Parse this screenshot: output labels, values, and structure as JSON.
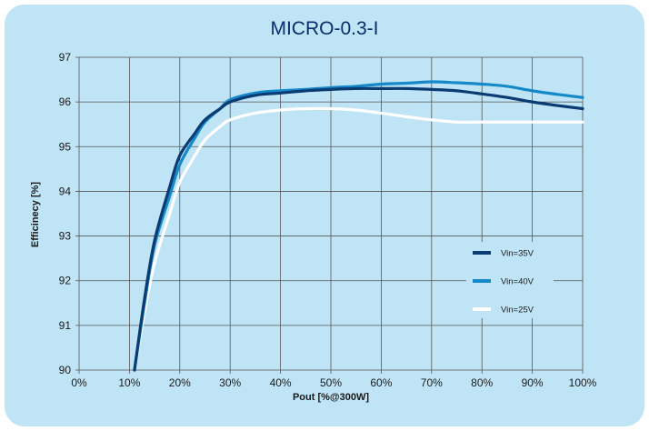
{
  "chart_data": {
    "type": "line",
    "title": "MICRO-0.3-I",
    "xlabel": "Pout [%@300W]",
    "ylabel": "Efficinecy [%]",
    "xlim": [
      0,
      100
    ],
    "ylim": [
      90,
      97
    ],
    "x_ticks": [
      "0%",
      "10%",
      "20%",
      "30%",
      "40%",
      "50%",
      "60%",
      "70%",
      "80%",
      "90%",
      "100%"
    ],
    "y_ticks": [
      "90",
      "91",
      "92",
      "93",
      "94",
      "95",
      "96",
      "97"
    ],
    "grid": true,
    "legend_position": "right",
    "series": [
      {
        "name": "Vin=35V",
        "color": "#0b3b73",
        "points": [
          [
            11,
            90
          ],
          [
            13,
            91.6
          ],
          [
            15,
            92.9
          ],
          [
            18,
            94.1
          ],
          [
            20,
            94.8
          ],
          [
            23,
            95.3
          ],
          [
            25,
            95.6
          ],
          [
            28,
            95.85
          ],
          [
            30,
            96.0
          ],
          [
            35,
            96.15
          ],
          [
            40,
            96.2
          ],
          [
            45,
            96.25
          ],
          [
            50,
            96.28
          ],
          [
            55,
            96.3
          ],
          [
            60,
            96.3
          ],
          [
            65,
            96.3
          ],
          [
            70,
            96.28
          ],
          [
            75,
            96.25
          ],
          [
            80,
            96.18
          ],
          [
            85,
            96.1
          ],
          [
            90,
            96.0
          ],
          [
            95,
            95.92
          ],
          [
            100,
            95.85
          ]
        ]
      },
      {
        "name": "Vin=40V",
        "color": "#1589c9",
        "points": [
          [
            11,
            90
          ],
          [
            13,
            91.5
          ],
          [
            15,
            92.8
          ],
          [
            18,
            93.9
          ],
          [
            20,
            94.6
          ],
          [
            23,
            95.2
          ],
          [
            25,
            95.55
          ],
          [
            28,
            95.85
          ],
          [
            30,
            96.05
          ],
          [
            35,
            96.2
          ],
          [
            40,
            96.25
          ],
          [
            45,
            96.28
          ],
          [
            50,
            96.32
          ],
          [
            55,
            96.35
          ],
          [
            60,
            96.4
          ],
          [
            65,
            96.42
          ],
          [
            70,
            96.45
          ],
          [
            75,
            96.43
          ],
          [
            80,
            96.4
          ],
          [
            85,
            96.35
          ],
          [
            90,
            96.25
          ],
          [
            95,
            96.17
          ],
          [
            100,
            96.1
          ]
        ]
      },
      {
        "name": "Vin=25V",
        "color": "#ffffff",
        "points": [
          [
            11,
            90
          ],
          [
            13,
            91.3
          ],
          [
            15,
            92.4
          ],
          [
            18,
            93.5
          ],
          [
            20,
            94.2
          ],
          [
            23,
            94.8
          ],
          [
            25,
            95.15
          ],
          [
            28,
            95.45
          ],
          [
            30,
            95.6
          ],
          [
            35,
            95.75
          ],
          [
            40,
            95.82
          ],
          [
            45,
            95.85
          ],
          [
            50,
            95.85
          ],
          [
            55,
            95.82
          ],
          [
            60,
            95.75
          ],
          [
            65,
            95.67
          ],
          [
            70,
            95.6
          ],
          [
            75,
            95.55
          ],
          [
            80,
            95.55
          ],
          [
            85,
            95.55
          ],
          [
            90,
            95.55
          ],
          [
            95,
            95.55
          ],
          [
            100,
            95.55
          ]
        ]
      }
    ]
  }
}
